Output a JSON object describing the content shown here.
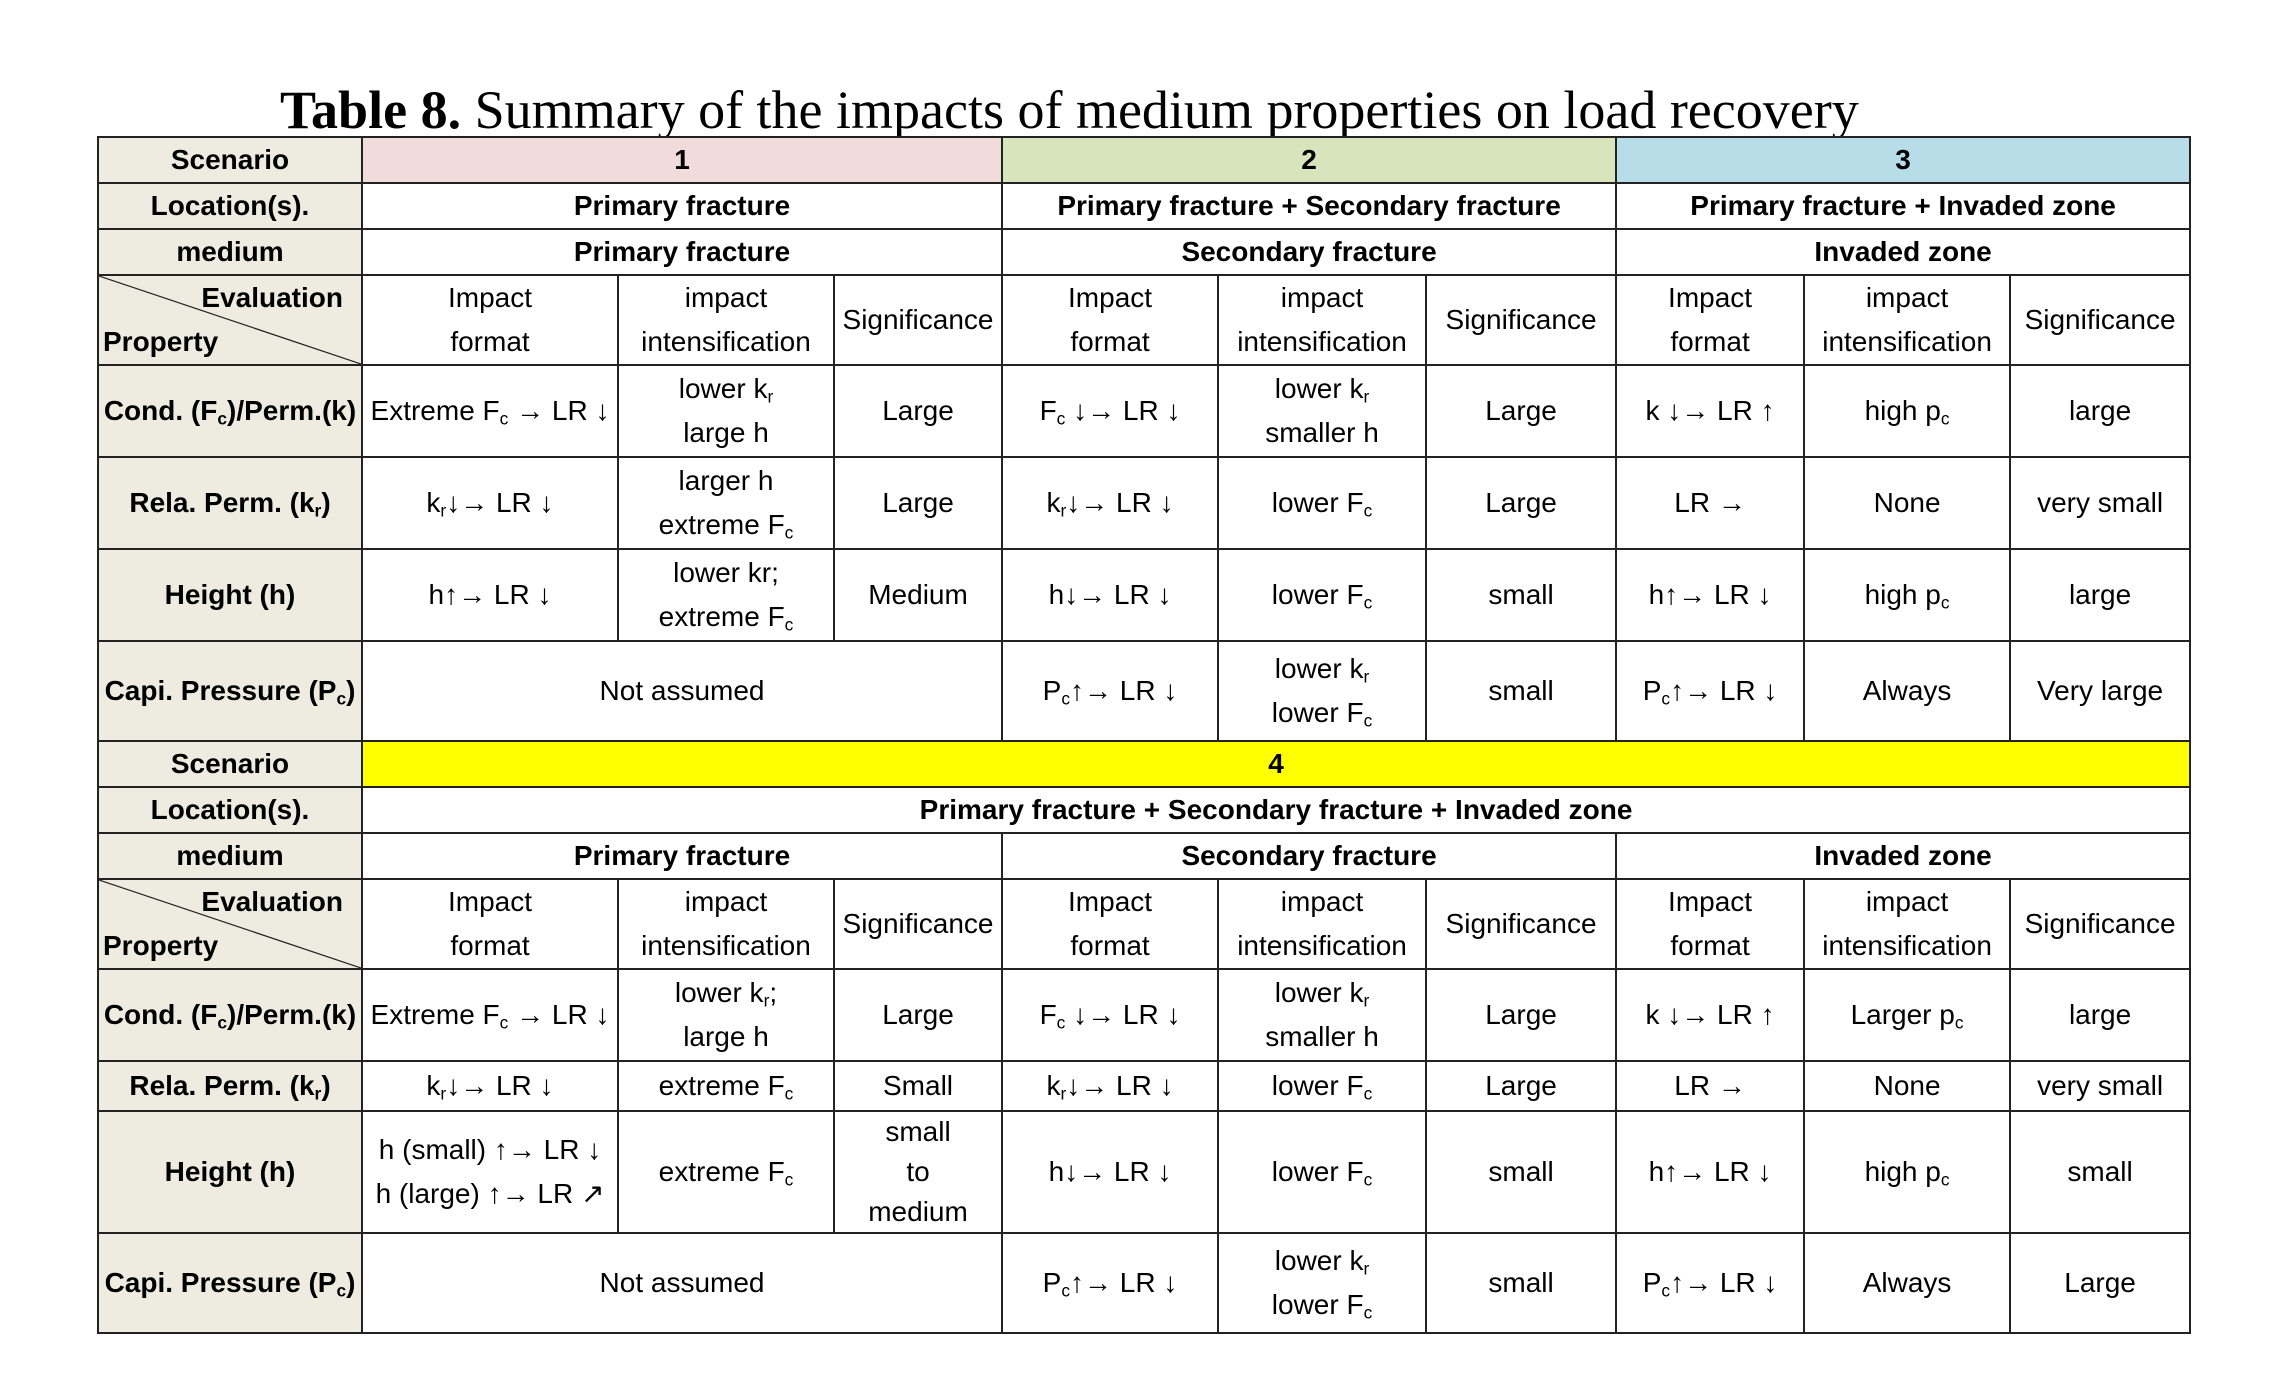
{
  "caption": {
    "label": "Table 8.",
    "text": " Summary of the impacts of medium properties on load recovery"
  },
  "labels": {
    "scenario": "Scenario",
    "locations": "Location(s).",
    "medium": "medium",
    "evaluation": "Evaluation",
    "property": "Property"
  },
  "column_headers": {
    "impact_format_1": "Impact",
    "impact_format_2": "format",
    "impact_intens_1": "impact",
    "impact_intens_2": "intensification",
    "significance": "Significance"
  },
  "scenario_colors": {
    "s1": "#f2dcdb",
    "s2": "#d8e4bc",
    "s3": "#b7dee8",
    "s4": "#ffff00"
  },
  "top": {
    "scenarios": [
      "1",
      "2",
      "3"
    ],
    "locations": [
      "Primary fracture",
      "Primary fracture + Secondary fracture",
      "Primary fracture + Invaded zone"
    ],
    "media": [
      "Primary fracture",
      "Secondary fracture",
      "Invaded zone"
    ],
    "properties": [
      "Cond. (F",
      "c",
      ")/Perm.(k)",
      "Rela. Perm. (k",
      "r",
      ")",
      "Height (h)",
      "Capi. Pressure (P",
      "c",
      ")"
    ],
    "not_assumed": "Not assumed",
    "cells": {
      "cond_pf_format": "Extreme F",
      "cond_pf_format_sub": "c",
      "cond_pf_format_tail": " → LR ↓",
      "cond_pf_int_1": "lower k",
      "cond_pf_int_1_sub": "r",
      "cond_pf_int_2": "large h",
      "cond_pf_sig": "Large",
      "cond_sf_format": "F",
      "cond_sf_format_sub": "c",
      "cond_sf_format_tail": " ↓→ LR ↓",
      "cond_sf_int_1": "lower k",
      "cond_sf_int_1_sub": "r",
      "cond_sf_int_2": "smaller h",
      "cond_sf_sig": "Large",
      "cond_iz_format": "k ↓→ LR ↑",
      "cond_iz_int": "high p",
      "cond_iz_int_sub": "c",
      "cond_iz_sig": "large",
      "rel_pf_format": "k",
      "rel_pf_format_sub": "r",
      "rel_pf_format_tail": "↓→ LR ↓",
      "rel_pf_int_1": "larger h",
      "rel_pf_int_2": "extreme F",
      "rel_pf_int_2_sub": "c",
      "rel_pf_sig": "Large",
      "rel_sf_format": "k",
      "rel_sf_format_sub": "r",
      "rel_sf_format_tail": "↓→ LR ↓",
      "rel_sf_int": "lower F",
      "rel_sf_int_sub": "c",
      "rel_sf_sig": "Large",
      "rel_iz_format": "LR →",
      "rel_iz_int": "None",
      "rel_iz_sig": "very small",
      "h_pf_format": "h↑→ LR ↓",
      "h_pf_int_1": "lower kr;",
      "h_pf_int_2": "extreme F",
      "h_pf_int_2_sub": "c",
      "h_pf_sig": "Medium",
      "h_sf_format": "h↓→ LR ↓",
      "h_sf_int": "lower F",
      "h_sf_int_sub": "c",
      "h_sf_sig": "small",
      "h_iz_format": "h↑→ LR ↓",
      "h_iz_int": "high p",
      "h_iz_int_sub": "c",
      "h_iz_sig": "large",
      "cp_sf_format": "P",
      "cp_sf_format_sub": "c",
      "cp_sf_format_tail": "↑→ LR ↓",
      "cp_sf_int_1": "lower k",
      "cp_sf_int_1_sub": "r",
      "cp_sf_int_2": "lower F",
      "cp_sf_int_2_sub": "c",
      "cp_sf_sig": "small",
      "cp_iz_format": "P",
      "cp_iz_format_sub": "c",
      "cp_iz_format_tail": "↑→ LR ↓",
      "cp_iz_int": "Always",
      "cp_iz_sig": "Very large"
    }
  },
  "bottom": {
    "scenario": "4",
    "location": "Primary fracture + Secondary fracture + Invaded zone",
    "media": [
      "Primary fracture",
      "Secondary fracture",
      "Invaded zone"
    ],
    "cells": {
      "cond_pf_format": "Extreme F",
      "cond_pf_format_sub": "c",
      "cond_pf_format_tail": " → LR ↓",
      "cond_pf_int_1": "lower k",
      "cond_pf_int_1_sub": "r",
      "cond_pf_int_1_tail": ";",
      "cond_pf_int_2": "large h",
      "cond_pf_sig": "Large",
      "cond_sf_format": "F",
      "cond_sf_format_sub": "c",
      "cond_sf_format_tail": " ↓→ LR ↓",
      "cond_sf_int_1": "lower k",
      "cond_sf_int_1_sub": "r",
      "cond_sf_int_2": "smaller h",
      "cond_sf_sig": "Large",
      "cond_iz_format": "k ↓→ LR ↑",
      "cond_iz_int": "Larger p",
      "cond_iz_int_sub": "c",
      "cond_iz_sig": "large",
      "rel_pf_format": "k",
      "rel_pf_format_sub": "r",
      "rel_pf_format_tail": "↓→ LR ↓",
      "rel_pf_int": "extreme F",
      "rel_pf_int_sub": "c",
      "rel_pf_sig": "Small",
      "rel_sf_format": "k",
      "rel_sf_format_sub": "r",
      "rel_sf_format_tail": "↓→ LR ↓",
      "rel_sf_int": "lower F",
      "rel_sf_int_sub": "c",
      "rel_sf_sig": "Large",
      "rel_iz_format": "LR →",
      "rel_iz_int": "None",
      "rel_iz_sig": "very  small",
      "h_pf_format_1": "h (small) ↑→ LR ↓",
      "h_pf_format_2": "h (large) ↑→ LR ↗",
      "h_pf_int": "extreme F",
      "h_pf_int_sub": "c",
      "h_pf_sig_1": "small",
      "h_pf_sig_2": "to",
      "h_pf_sig_3": "medium",
      "h_sf_format": "h↓→ LR ↓",
      "h_sf_int": "lower F",
      "h_sf_int_sub": "c",
      "h_sf_sig": "small",
      "h_iz_format": "h↑→ LR ↓",
      "h_iz_int": "high p",
      "h_iz_int_sub": "c",
      "h_iz_sig": "small",
      "cp_sf_format": "P",
      "cp_sf_format_sub": "c",
      "cp_sf_format_tail": "↑→ LR ↓",
      "cp_sf_int_1": "lower k",
      "cp_sf_int_1_sub": "r",
      "cp_sf_int_2": "lower F",
      "cp_sf_int_2_sub": "c",
      "cp_sf_sig": "small",
      "cp_iz_format": "P",
      "cp_iz_format_sub": "c",
      "cp_iz_format_tail": "↑→ LR ↓",
      "cp_iz_int": "Always",
      "cp_iz_sig": "Large"
    }
  }
}
